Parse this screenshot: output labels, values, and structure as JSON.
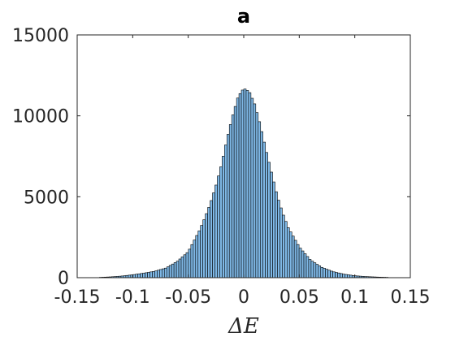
{
  "chart_data": {
    "type": "bar",
    "title": "a",
    "xlabel": "ΔE",
    "ylabel": "",
    "xlim": [
      -0.15,
      0.15
    ],
    "ylim": [
      0,
      15000
    ],
    "xticks": [
      -0.15,
      -0.1,
      -0.05,
      0,
      0.05,
      0.1,
      0.15
    ],
    "xtick_labels": [
      "-0.15",
      "-0.1",
      "-0.05",
      "0",
      "0.05",
      "0.1",
      "0.15"
    ],
    "yticks": [
      0,
      5000,
      10000,
      15000
    ],
    "ytick_labels": [
      "0",
      "5000",
      "10000",
      "15000"
    ],
    "grid": false,
    "legend": "none",
    "bar_fill": "#7fb8e6",
    "bar_edge": "#000000",
    "bins": {
      "x": [
        -0.13,
        -0.12,
        -0.11,
        -0.1,
        -0.09,
        -0.08,
        -0.07,
        -0.06,
        -0.05,
        -0.04,
        -0.035,
        -0.03,
        -0.025,
        -0.02,
        -0.015,
        -0.01,
        -0.005,
        0,
        0.005,
        0.01,
        0.015,
        0.02,
        0.025,
        0.03,
        0.035,
        0.04,
        0.05,
        0.06,
        0.07,
        0.08,
        0.09,
        0.1,
        0.11,
        0.12,
        0.13
      ],
      "counts": [
        20,
        50,
        100,
        180,
        280,
        400,
        600,
        1000,
        1600,
        2900,
        3700,
        4600,
        5700,
        7000,
        8600,
        10000,
        11200,
        11700,
        11500,
        10700,
        9400,
        7900,
        6500,
        5100,
        4000,
        3100,
        1900,
        1100,
        650,
        380,
        220,
        120,
        70,
        40,
        20
      ]
    }
  }
}
